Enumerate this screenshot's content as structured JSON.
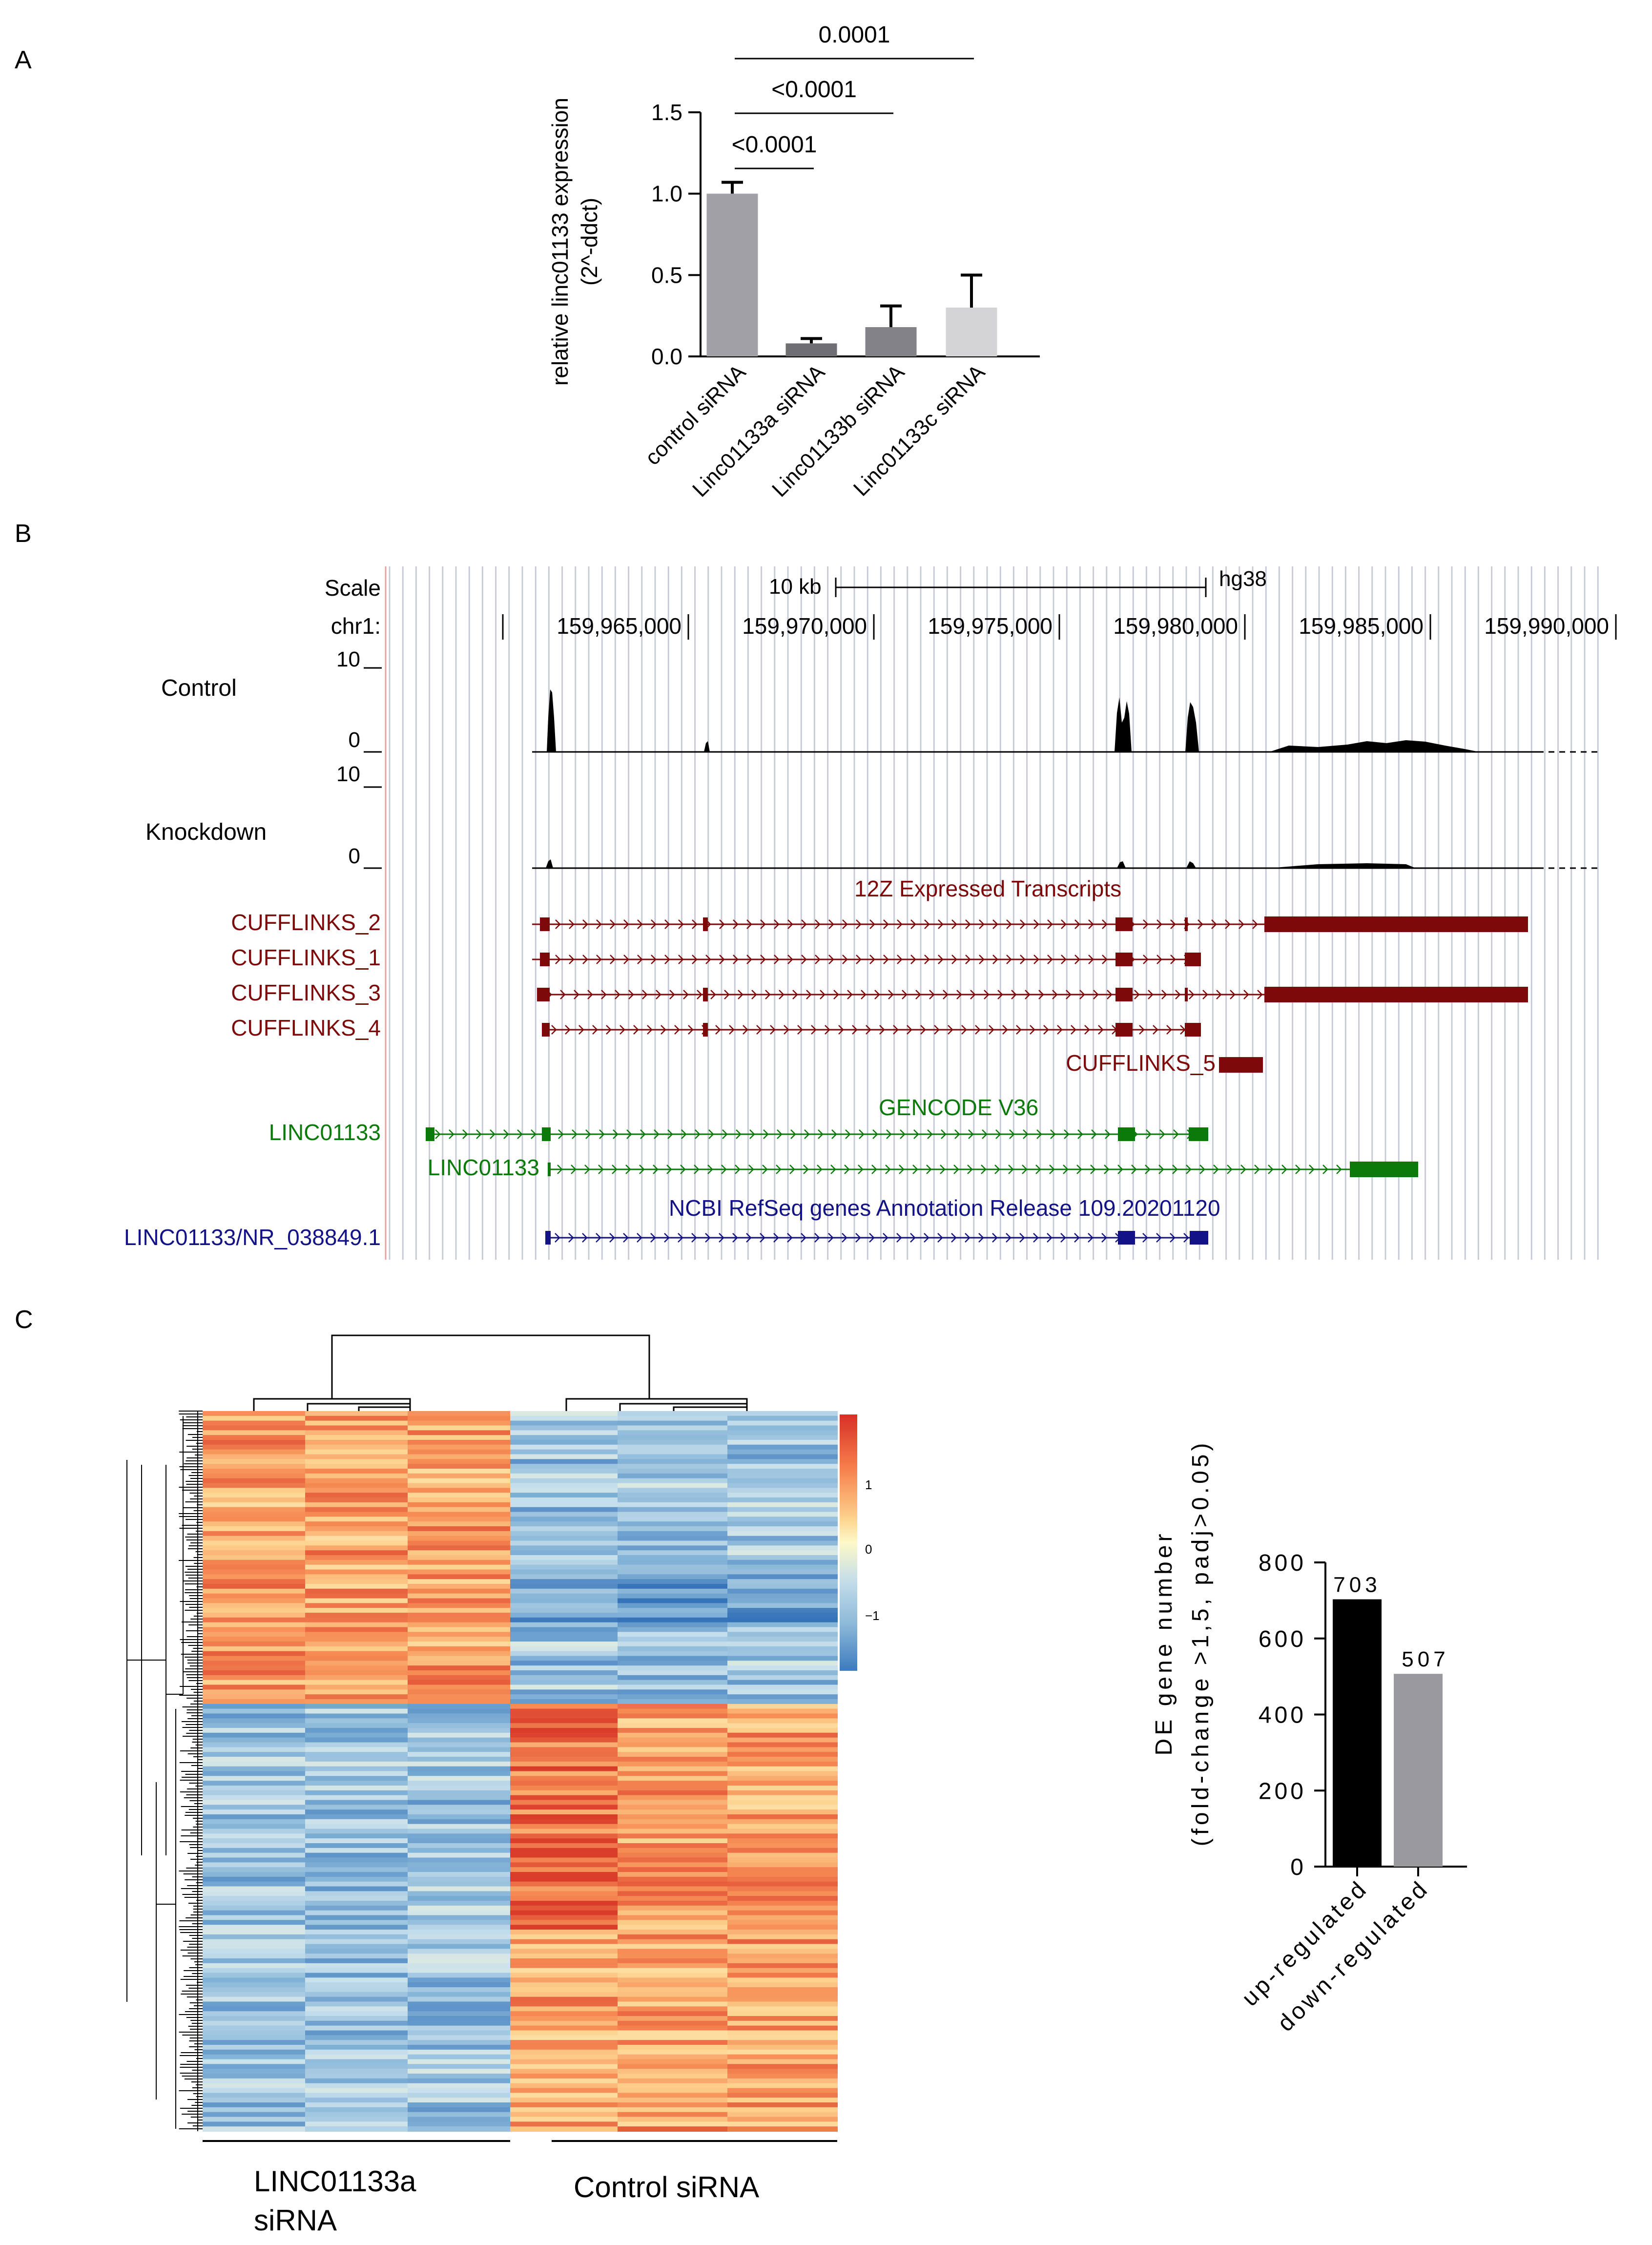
{
  "panels": {
    "a": "A",
    "b": "B",
    "c": "C"
  },
  "panel_a": {
    "chart_data": {
      "type": "bar",
      "categories": [
        "control siRNA",
        "Linc01133a siRNA",
        "Linc01133b siRNA",
        "Linc01133c siRNA"
      ],
      "values": [
        1.0,
        0.08,
        0.18,
        0.3
      ],
      "errors": [
        0.07,
        0.03,
        0.13,
        0.2
      ],
      "colors": [
        "#a0a0a5",
        "#6e6e73",
        "#828287",
        "#d4d4d7"
      ],
      "ylabel": [
        "relative linc01133 expression",
        "(2^-ddct)"
      ],
      "ylim": [
        0,
        1.5
      ],
      "yticks": [
        "0.0",
        "0.5",
        "1.0",
        "1.5"
      ],
      "significance": [
        {
          "from": 0,
          "to": 1,
          "label": "<0.0001"
        },
        {
          "from": 0,
          "to": 2,
          "label": "<0.0001"
        },
        {
          "from": 0,
          "to": 3,
          "label": "0.0001"
        }
      ]
    }
  },
  "panel_b": {
    "scale_label": "Scale",
    "scale_bar_label": "10 kb",
    "assembly": "hg38",
    "chrom_label": "chr1:",
    "positions": [
      "159,965,000",
      "159,970,000",
      "159,975,000",
      "159,980,000",
      "159,985,000",
      "159,990,000"
    ],
    "tracks": [
      {
        "name": "Control",
        "max": "10",
        "min": "0"
      },
      {
        "name": "Knockdown",
        "max": "10",
        "min": "0"
      }
    ],
    "group_titles": {
      "cufflinks": "12Z  Expressed  Transcripts",
      "gencode": "GENCODE V36",
      "refseq": "NCBI RefSeq genes Annotation Release 109.20201120"
    },
    "transcript_labels": {
      "c2": "CUFFLINKS_2",
      "c1": "CUFFLINKS_1",
      "c3": "CUFFLINKS_3",
      "c4": "CUFFLINKS_4",
      "c5": "CUFFLINKS_5",
      "g1": "LINC01133",
      "g2": "LINC01133",
      "r1": "LINC01133/NR_038849.1"
    },
    "colors": {
      "cufflinks": "#7d0a0a",
      "gencode": "#0b7a0b",
      "refseq": "#131385"
    }
  },
  "panel_c": {
    "heatmap": {
      "group_labels": {
        "left_line1": "LINC01133a",
        "left_line2": "siRNA",
        "right": "Control siRNA"
      },
      "legend_ticks": [
        "1",
        "0",
        "−1"
      ]
    },
    "chart_data": {
      "type": "bar",
      "categories": [
        "up-regulated",
        "down-regulated"
      ],
      "values": [
        703,
        507
      ],
      "value_labels": [
        "703",
        "507"
      ],
      "colors": [
        "#000000",
        "#9a9a9e"
      ],
      "ylabel": [
        "DE gene number",
        "(fold-change >1,5, padj>0.05)"
      ],
      "ylim": [
        0,
        800
      ],
      "yticks": [
        "0",
        "200",
        "400",
        "600",
        "800"
      ]
    }
  }
}
